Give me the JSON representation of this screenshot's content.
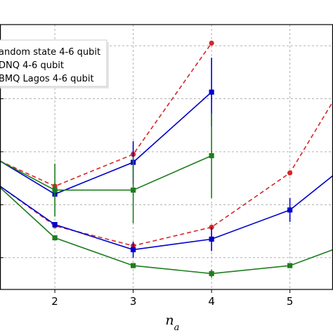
{
  "chart_data": {
    "type": "line",
    "title": "",
    "xlabel": "n",
    "xlabel_subscript": "a",
    "ylabel": "",
    "xlim": [
      1.3,
      5.55
    ],
    "ylim": [
      0,
      1
    ],
    "xticks": [
      2,
      3,
      4,
      5
    ],
    "xtick_labels": [
      "2",
      "3",
      "4",
      "5"
    ],
    "yticks": [
      0.12,
      0.32,
      0.52,
      0.72,
      0.92
    ],
    "grid": true,
    "legend_position": "top-left",
    "legend_entries": [
      {
        "label": "andom state 4-6 qubit",
        "color": "#d62728",
        "marker": "circle",
        "dashed": true
      },
      {
        "label": "DNQ 4-6 qubit",
        "color": "#0000cc",
        "marker": "square",
        "dashed": false
      },
      {
        "label": "BMQ Lagos 4-6 qubit",
        "color": "#1e7d1e",
        "marker": "square",
        "dashed": false
      }
    ],
    "series": [
      {
        "color": "#d62728",
        "dashed": true,
        "marker": "circle",
        "x": [
          1.3,
          2,
          3,
          4
        ],
        "y": [
          0.485,
          0.39,
          0.51,
          0.93
        ],
        "err": [
          0,
          0,
          0,
          0
        ]
      },
      {
        "color": "#0000cc",
        "dashed": false,
        "marker": "square",
        "x": [
          1.3,
          2,
          3,
          4
        ],
        "y": [
          0.485,
          0.36,
          0.48,
          0.745
        ],
        "err": [
          0,
          0,
          0.08,
          0.13
        ]
      },
      {
        "color": "#1e7d1e",
        "dashed": false,
        "marker": "square",
        "x": [
          1.3,
          2,
          3,
          4
        ],
        "y": [
          0.485,
          0.375,
          0.375,
          0.505
        ],
        "err": [
          0,
          0.1,
          0.125,
          0.16
        ]
      },
      {
        "color": "#d62728",
        "dashed": true,
        "marker": "circle",
        "x": [
          1.3,
          2,
          3,
          4,
          5,
          5.55
        ],
        "y": [
          0.39,
          0.24,
          0.165,
          0.235,
          0.44,
          0.71
        ],
        "err": [
          0,
          0,
          0,
          0,
          0,
          0
        ]
      },
      {
        "color": "#0000cc",
        "dashed": false,
        "marker": "square",
        "x": [
          1.3,
          2,
          3,
          4,
          5,
          5.55
        ],
        "y": [
          0.39,
          0.245,
          0.15,
          0.19,
          0.3,
          0.43
        ],
        "err": [
          0,
          0,
          0.03,
          0.045,
          0.045,
          0
        ]
      },
      {
        "color": "#1e7d1e",
        "dashed": false,
        "marker": "square",
        "x": [
          1.3,
          2,
          3,
          4,
          5,
          5.55
        ],
        "y": [
          0.385,
          0.195,
          0.09,
          0.06,
          0.09,
          0.15
        ],
        "err": [
          0,
          0,
          0,
          0.015,
          0,
          0
        ]
      }
    ]
  }
}
